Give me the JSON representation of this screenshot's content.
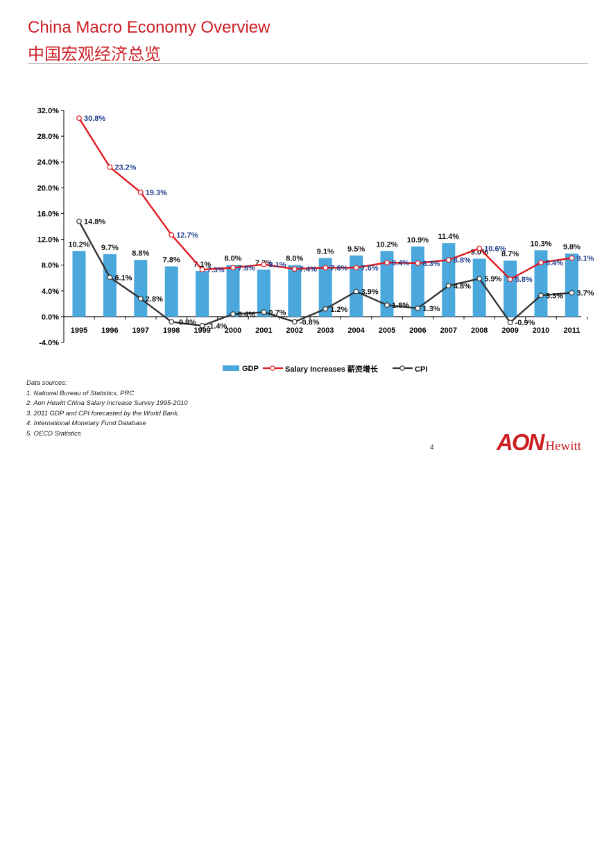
{
  "page": {
    "title_en": "China Macro Economy Overview",
    "title_cn": "中国宏观经济总览",
    "page_number": "4"
  },
  "sources": {
    "heading": "Data sources:",
    "items": [
      "1. National Bureau of Statistics, PRC",
      "2. Aon Hewitt China Salary Increase Survey 1995-2010",
      "3. 2011 GDP and CPI forecasted by the World Bank.",
      "4. International Monetary Fund Database",
      "5. OECD Statistics"
    ]
  },
  "logo": {
    "brand": "AON",
    "sub": "Hewitt"
  },
  "colors": {
    "title": "#cc1f24",
    "gdp": "#4aa8dc",
    "salary": "#e0181f",
    "cpi": "#333333",
    "salary_label": "#1f3e8c"
  },
  "chart_data": {
    "type": "bar",
    "categories": [
      "1995",
      "1996",
      "1997",
      "1998",
      "1999",
      "2000",
      "2001",
      "2002",
      "2003",
      "2004",
      "2005",
      "2006",
      "2007",
      "2008",
      "2009",
      "2010",
      "2011"
    ],
    "ylim": [
      -4.0,
      32.0
    ],
    "yticks": [
      -4.0,
      0.0,
      4.0,
      8.0,
      12.0,
      16.0,
      20.0,
      24.0,
      28.0,
      32.0
    ],
    "ytick_labels": [
      "-4.0%",
      "0.0%",
      "4.0%",
      "8.0%",
      "12.0%",
      "16.0%",
      "20.0%",
      "24.0%",
      "28.0%",
      "32.0%"
    ],
    "legend_position": "bottom",
    "grid": false,
    "series": [
      {
        "name": "GDP",
        "type": "bar",
        "values": [
          10.2,
          9.7,
          8.8,
          7.8,
          7.1,
          8.0,
          7.3,
          8.0,
          9.1,
          9.5,
          10.2,
          10.9,
          11.4,
          9.0,
          8.7,
          10.3,
          9.8
        ],
        "labels": [
          "10.2%",
          "9.7%",
          "8.8%",
          "7.8%",
          "7.1%",
          "8.0%",
          "7.3%",
          "8.0%",
          "9.1%",
          "9.5%",
          "10.2%",
          "10.9%",
          "11.4%",
          "9.0%",
          "8.7%",
          "10.3%",
          "9.8%"
        ]
      },
      {
        "name": "Salary Increases 薪资增长",
        "type": "line",
        "values": [
          30.8,
          23.2,
          19.3,
          12.7,
          7.3,
          7.6,
          8.1,
          7.4,
          7.6,
          7.6,
          8.4,
          8.3,
          8.8,
          10.6,
          5.8,
          8.4,
          9.1
        ],
        "labels": [
          "30.8%",
          "23.2%",
          "19.3%",
          "12.7%",
          "7.3%",
          "7.6%",
          "8.1%",
          "7.4%",
          "7.6%",
          "7.6%",
          "8.4%",
          "8.3%",
          "8.8%",
          "10.6%",
          "5.8%",
          "8.4%",
          "9.1%"
        ]
      },
      {
        "name": "CPI",
        "type": "line",
        "values": [
          14.8,
          6.1,
          2.8,
          -0.8,
          -1.4,
          0.4,
          0.7,
          -0.8,
          1.2,
          3.9,
          1.8,
          1.3,
          4.8,
          5.9,
          -0.9,
          3.3,
          3.7
        ],
        "labels": [
          "14.8%",
          "6.1%",
          "2.8%",
          "-0.8%",
          "-1.4%",
          "0.4%",
          "0.7%",
          "-0.8%",
          "1.2%",
          "3.9%",
          "1.8%",
          "1.3%",
          "4.8%",
          "5.9%",
          "-0.9%",
          "3.3%",
          "3.7%"
        ]
      }
    ]
  }
}
